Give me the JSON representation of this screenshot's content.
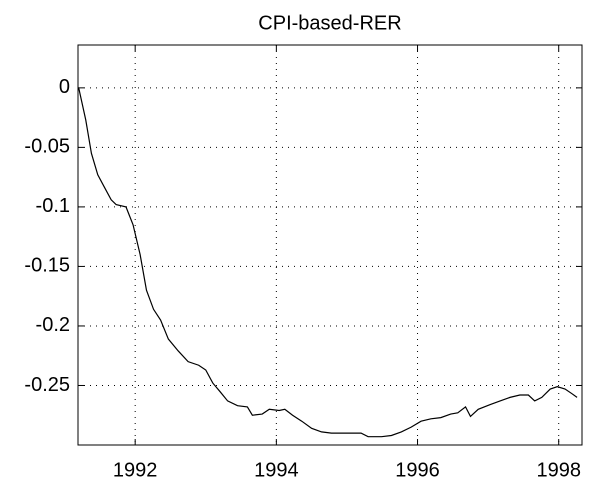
{
  "chart_data": {
    "type": "line",
    "title": "CPI-based-RER",
    "x": [
      1991.2,
      1991.3,
      1991.38,
      1991.47,
      1991.56,
      1991.66,
      1991.73,
      1991.87,
      1991.97,
      1992.07,
      1992.16,
      1992.26,
      1992.36,
      1992.47,
      1992.61,
      1992.75,
      1992.9,
      1993.0,
      1993.1,
      1993.2,
      1993.31,
      1993.45,
      1993.59,
      1993.66,
      1993.8,
      1993.9,
      1994.04,
      1994.12,
      1994.23,
      1994.36,
      1994.5,
      1994.64,
      1994.78,
      1994.92,
      1995.06,
      1995.2,
      1995.3,
      1995.49,
      1995.63,
      1995.77,
      1995.91,
      1996.05,
      1996.19,
      1996.33,
      1996.47,
      1996.57,
      1996.68,
      1996.75,
      1996.86,
      1997.03,
      1997.17,
      1997.31,
      1997.45,
      1997.57,
      1997.66,
      1997.76,
      1997.88,
      1997.98,
      1998.09,
      1998.19,
      1998.26
    ],
    "series": [
      {
        "color": "#000000",
        "values": [
          0,
          -0.027,
          -0.055,
          -0.073,
          -0.083,
          -0.094,
          -0.098,
          -0.1,
          -0.115,
          -0.14,
          -0.17,
          -0.186,
          -0.195,
          -0.211,
          -0.221,
          -0.23,
          -0.233,
          -0.237,
          -0.248,
          -0.255,
          -0.263,
          -0.267,
          -0.268,
          -0.275,
          -0.274,
          -0.27,
          -0.271,
          -0.27,
          -0.275,
          -0.28,
          -0.286,
          -0.289,
          -0.29,
          -0.29,
          -0.29,
          -0.29,
          -0.293,
          -0.293,
          -0.292,
          -0.289,
          -0.285,
          -0.28,
          -0.278,
          -0.277,
          -0.274,
          -0.273,
          -0.268,
          -0.276,
          -0.27,
          -0.266,
          -0.263,
          -0.26,
          -0.258,
          -0.258,
          -0.263,
          -0.26,
          -0.253,
          -0.251,
          -0.253,
          -0.257,
          -0.26
        ]
      }
    ],
    "xlim": [
      1991.19,
      1998.33
    ],
    "xticks": [
      1992,
      1994,
      1996,
      1998
    ],
    "ylim": [
      -0.3,
      0.036
    ],
    "yticks": [
      0,
      -0.05,
      -0.1,
      -0.15,
      -0.2,
      -0.25
    ],
    "grid": true
  }
}
